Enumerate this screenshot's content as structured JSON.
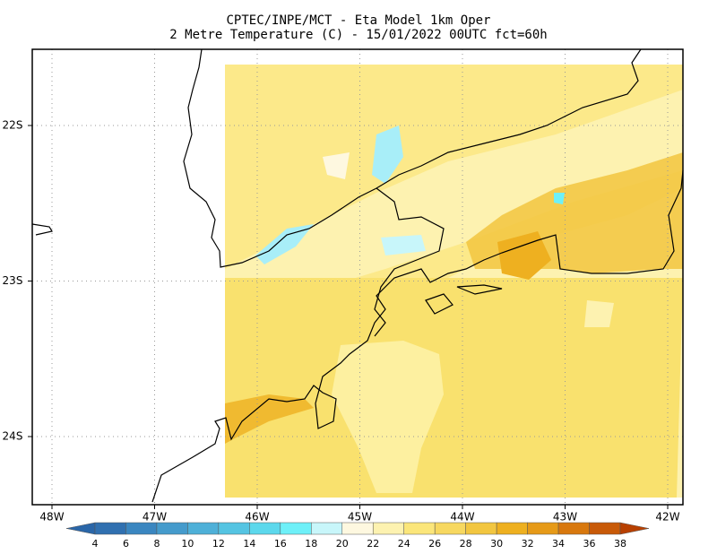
{
  "title": [
    "CPTEC/INPE/MCT -  Eta Model 1km Oper",
    "2 Metre Temperature (C) - 15/01/2022 00UTC fct=60h"
  ],
  "map": {
    "lon_labels": [
      "48W",
      "47W",
      "46W",
      "45W",
      "44W",
      "43W",
      "42W"
    ],
    "lat_labels": [
      "22S",
      "23S",
      "24S"
    ]
  },
  "colorbar": {
    "levels": [
      4,
      6,
      8,
      10,
      12,
      14,
      16,
      18,
      20,
      22,
      24,
      26,
      28,
      30,
      32,
      34,
      36,
      38
    ],
    "colors": [
      "#2a66a8",
      "#3070b0",
      "#3a86c0",
      "#459bcc",
      "#4eb0d8",
      "#55c4e2",
      "#5cd8ec",
      "#6ef0f8",
      "#c8f6fa",
      "#fef8e0",
      "#fdf2b0",
      "#fbe67a",
      "#f7d860",
      "#f2c640",
      "#eeb020",
      "#e69a18",
      "#d8780e",
      "#c85a08",
      "#b84000"
    ]
  }
}
